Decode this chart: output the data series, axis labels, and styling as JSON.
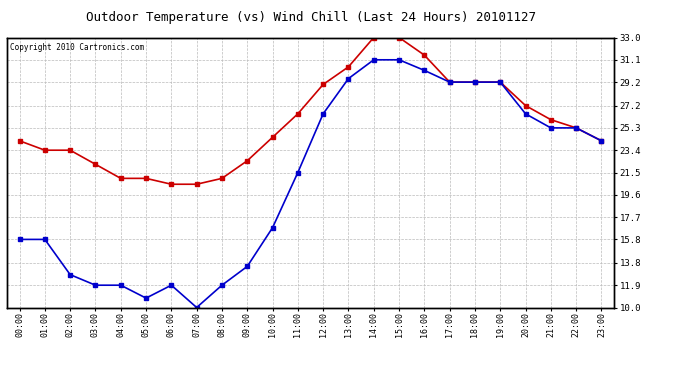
{
  "title": "Outdoor Temperature (vs) Wind Chill (Last 24 Hours) 20101127",
  "copyright": "Copyright 2010 Cartronics.com",
  "hours": [
    "00:00",
    "01:00",
    "02:00",
    "03:00",
    "04:00",
    "05:00",
    "06:00",
    "07:00",
    "08:00",
    "09:00",
    "10:00",
    "11:00",
    "12:00",
    "13:00",
    "14:00",
    "15:00",
    "16:00",
    "17:00",
    "18:00",
    "19:00",
    "20:00",
    "21:00",
    "22:00",
    "23:00"
  ],
  "temp": [
    24.2,
    23.4,
    23.4,
    22.2,
    21.0,
    21.0,
    20.5,
    20.5,
    21.0,
    22.5,
    24.5,
    26.5,
    29.0,
    30.5,
    33.0,
    33.0,
    31.5,
    29.2,
    29.2,
    29.2,
    27.2,
    26.0,
    25.3,
    24.2
  ],
  "wind_chill": [
    15.8,
    15.8,
    12.8,
    11.9,
    11.9,
    10.8,
    11.9,
    10.0,
    11.9,
    13.5,
    16.8,
    21.5,
    26.5,
    29.5,
    31.1,
    31.1,
    30.2,
    29.2,
    29.2,
    29.2,
    26.5,
    25.3,
    25.3,
    24.2
  ],
  "ymin": 10.0,
  "ymax": 33.0,
  "yticks": [
    10.0,
    11.9,
    13.8,
    15.8,
    17.7,
    19.6,
    21.5,
    23.4,
    25.3,
    27.2,
    29.2,
    31.1,
    33.0
  ],
  "temp_color": "#cc0000",
  "wind_chill_color": "#0000cc",
  "bg_color": "#ffffff",
  "grid_color": "#bbbbbb",
  "marker": "s",
  "marker_size": 2.5,
  "linewidth": 1.2
}
